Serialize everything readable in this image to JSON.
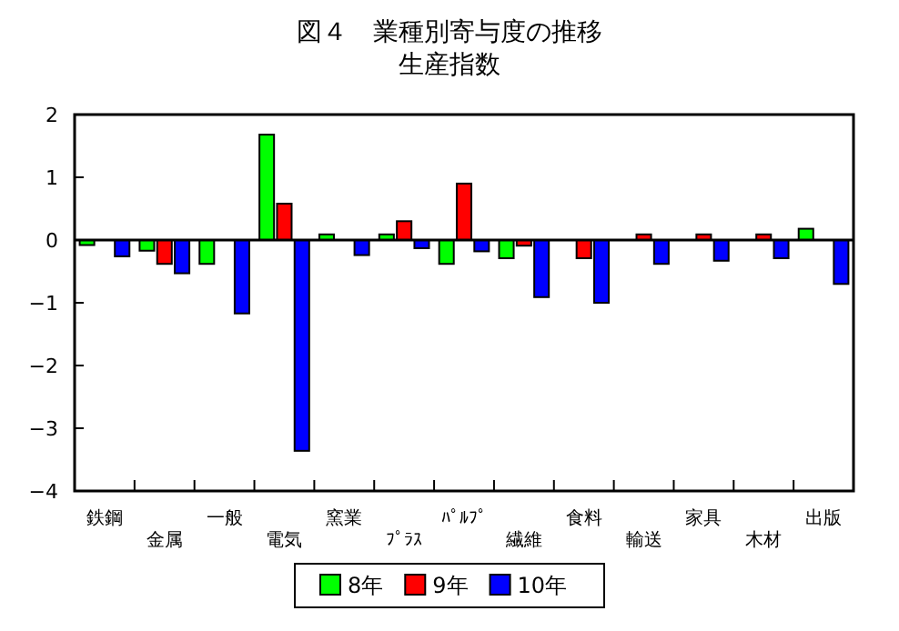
{
  "chart_data": {
    "type": "bar",
    "title": "図４　業種別寄与度の推移",
    "subtitle": "生産指数",
    "categories": [
      "鉄鋼",
      "金属",
      "一般",
      "電気",
      "窯業",
      "ﾌﾟﾗｽ",
      "ﾊﾟﾙﾌﾟ",
      "繊維",
      "食料",
      "輸送",
      "家具",
      "木材",
      "出版"
    ],
    "series": [
      {
        "name": "8年",
        "color": "#00ff00",
        "values": [
          -0.08,
          -0.17,
          -0.38,
          1.68,
          0.09,
          0.09,
          -0.38,
          -0.29,
          null,
          null,
          null,
          null,
          0.18
        ]
      },
      {
        "name": "9年",
        "color": "#ff0000",
        "values": [
          null,
          -0.38,
          null,
          0.58,
          null,
          0.3,
          0.9,
          -0.09,
          -0.29,
          0.09,
          0.09,
          0.09,
          null
        ]
      },
      {
        "name": "10年",
        "color": "#0000ff",
        "values": [
          -0.26,
          -0.53,
          -1.17,
          -3.36,
          -0.24,
          -0.13,
          -0.18,
          -0.91,
          -1.0,
          -0.38,
          -0.33,
          -0.29,
          -0.7
        ]
      }
    ],
    "ylim": [
      -4,
      2
    ],
    "yticks": [
      -4,
      -3,
      -2,
      -1,
      0,
      1,
      2
    ],
    "legend": "bottom"
  }
}
